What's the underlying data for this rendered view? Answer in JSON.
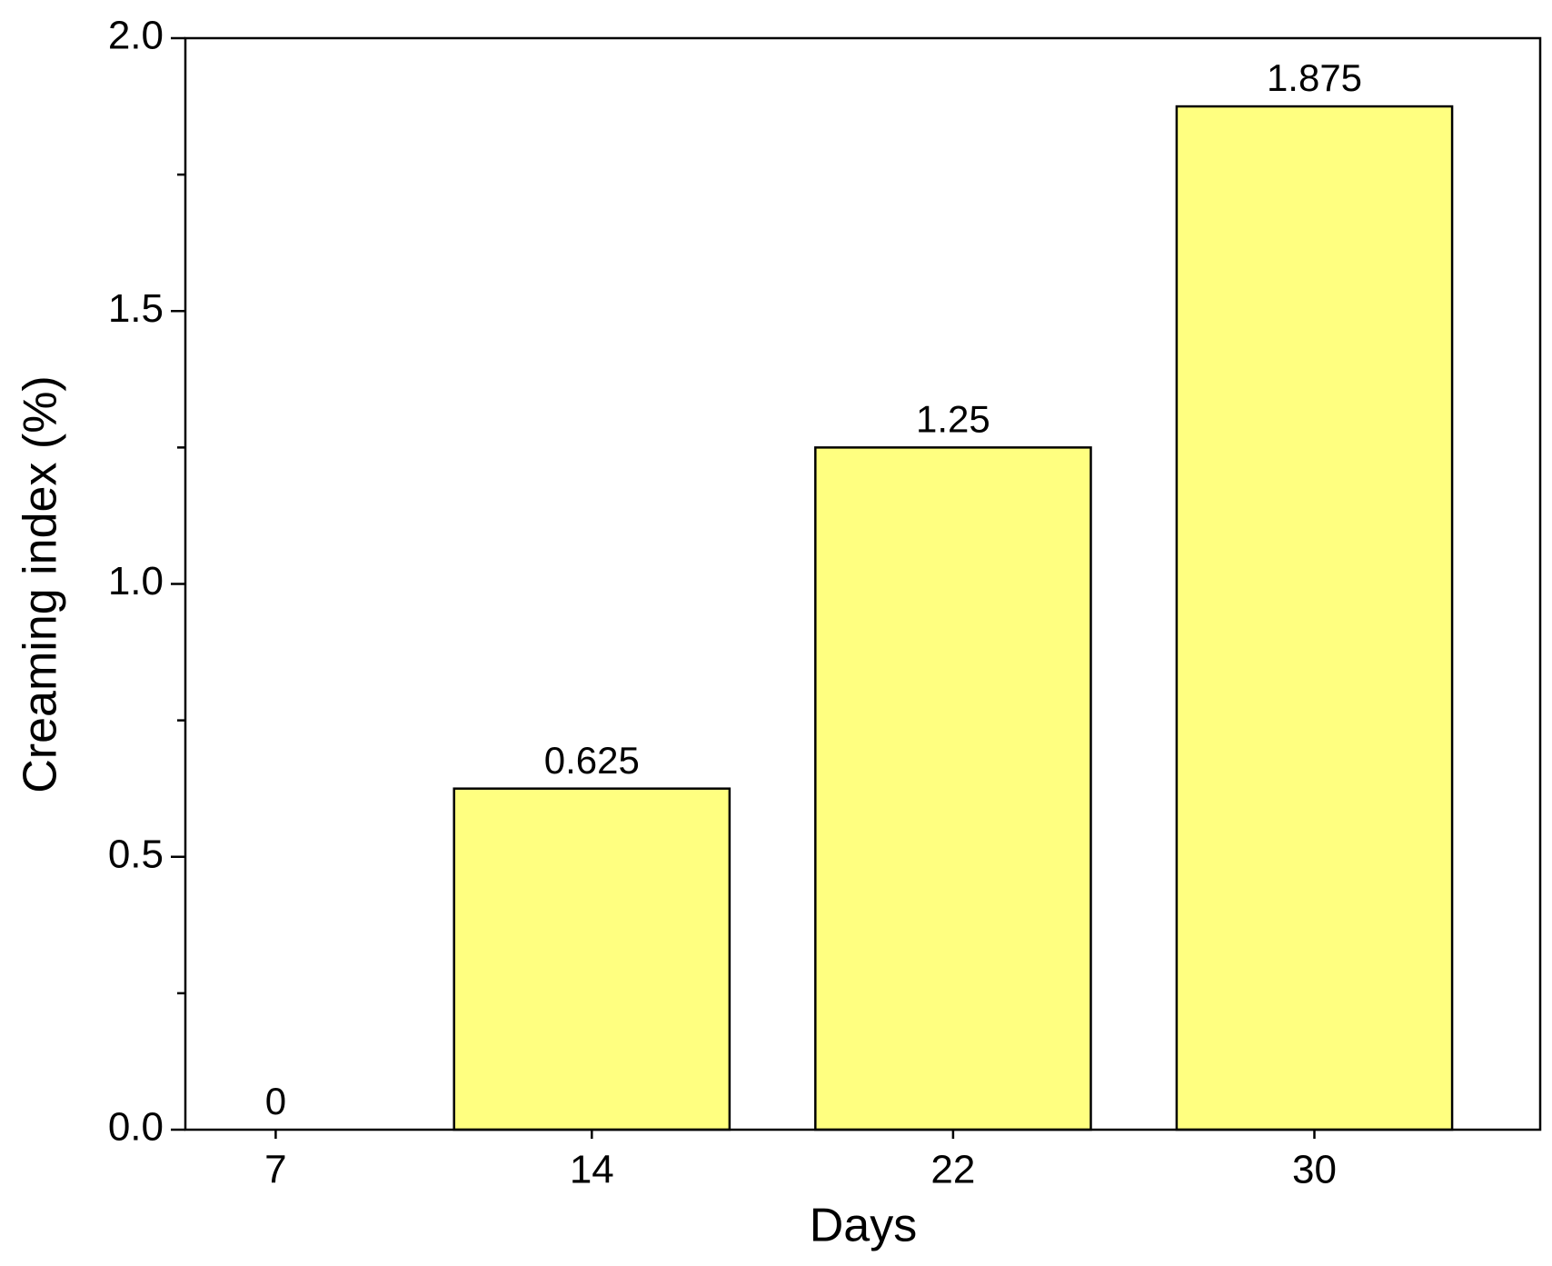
{
  "chart_data": {
    "type": "bar",
    "x_label": "Days",
    "y_label": "Creaming index (%)",
    "x": [
      7,
      14,
      22,
      30
    ],
    "values": [
      0,
      0.625,
      1.25,
      1.875
    ],
    "color": "#ffff80",
    "xlim": [
      5,
      35
    ],
    "xticks": [
      7,
      14,
      22,
      30
    ],
    "ylim": [
      0,
      2
    ],
    "yticks": [
      {
        "value": 0,
        "label": "0.0"
      },
      {
        "value": 0.5,
        "label": "0.5"
      },
      {
        "value": 1,
        "label": "1.0"
      },
      {
        "value": 1.5,
        "label": "1.5"
      },
      {
        "value": 2,
        "label": "2.0"
      }
    ],
    "minor_yticks": [
      0.25,
      0.75,
      1.25,
      1.75
    ],
    "grid": false
  }
}
